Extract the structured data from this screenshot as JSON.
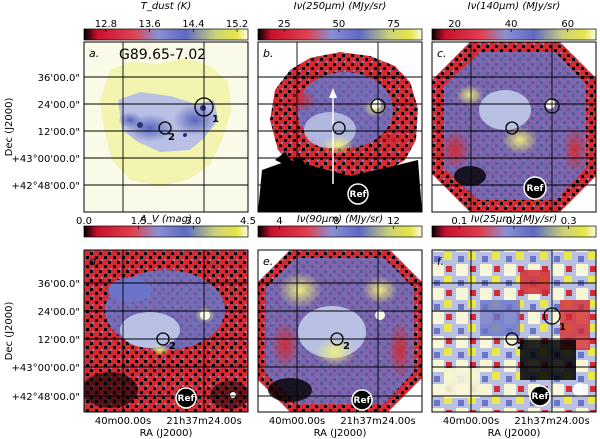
{
  "chart_data": {
    "type": "heatmap",
    "source_name": "G89.65-7.02",
    "y_axis_label": "Dec (J2000)",
    "x_axis_label": "RA (J2000)",
    "dec_tick_labels": [
      "36'00.0\"",
      "24'00.0\"",
      "12'00.0\"",
      "+43°00'00.0\"",
      "+42°48'00.0\""
    ],
    "ra_tick_labels": [
      "40m00.00s",
      "21h37m24.00s"
    ],
    "ref_label": "Ref",
    "colors": {
      "red": "#d42a32",
      "blue": "#6b74c8",
      "lightblue": "#b8c0e4",
      "yellow": "#e8e84a",
      "cream": "#f7f6d6",
      "black": "#000000"
    },
    "panels": [
      {
        "label": "a.",
        "colorbar_title": "T_dust (K)",
        "cbar_ticks": [
          "12.8",
          "13.6",
          "14.4",
          "15.2"
        ],
        "cbar_tick_values": [
          12.8,
          13.6,
          14.4,
          15.2
        ],
        "range": [
          12.4,
          15.4
        ],
        "sources": [
          "1",
          "2"
        ],
        "has_ref": false,
        "show_source_name": true
      },
      {
        "label": "b.",
        "colorbar_title": "Iν(250μm) (MJy/sr)",
        "cbar_ticks": [
          "25",
          "50",
          "75"
        ],
        "cbar_tick_values": [
          25,
          50,
          75
        ],
        "range": [
          13,
          88
        ],
        "sources": [],
        "has_ref": true,
        "show_source_name": false
      },
      {
        "label": "c.",
        "colorbar_title": "Iν(140μm) (MJy/sr)",
        "cbar_ticks": [
          "20",
          "40",
          "60"
        ],
        "cbar_tick_values": [
          20,
          40,
          60
        ],
        "range": [
          12,
          70
        ],
        "sources": [],
        "has_ref": true,
        "show_source_name": false
      },
      {
        "label": "d.",
        "colorbar_title": "A_V (mag)",
        "cbar_ticks": [
          "0.0",
          "1.5",
          "3.0",
          "4.5"
        ],
        "cbar_tick_values": [
          0.0,
          1.5,
          3.0,
          4.5
        ],
        "range": [
          0.0,
          4.5
        ],
        "sources": [
          "2"
        ],
        "has_ref": true,
        "show_source_name": false
      },
      {
        "label": "e.",
        "colorbar_title": "Iν(90μm) (MJy/sr)",
        "cbar_ticks": [
          "4",
          "8",
          "12"
        ],
        "cbar_tick_values": [
          4,
          8,
          12
        ],
        "range": [
          2.5,
          14
        ],
        "sources": [
          "2"
        ],
        "has_ref": true,
        "show_source_name": false
      },
      {
        "label": "f.",
        "colorbar_title": "Iν(25μm) (MJy/sr)",
        "cbar_ticks": [
          "0.1",
          "0.2",
          "0.3"
        ],
        "cbar_tick_values": [
          0.1,
          0.2,
          0.3
        ],
        "range": [
          0.05,
          0.35
        ],
        "sources": [
          "1",
          "2"
        ],
        "has_ref": true,
        "show_source_name": false
      }
    ]
  }
}
